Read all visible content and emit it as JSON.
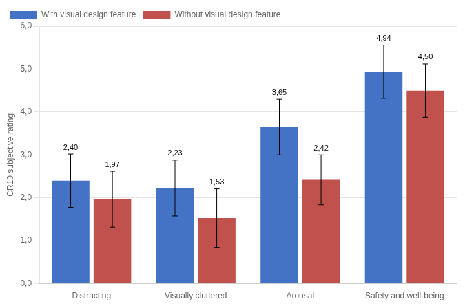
{
  "chart_data": {
    "type": "bar",
    "categories": [
      "Distracting",
      "Visually cluttered",
      "Arousal",
      "Safety and well-being"
    ],
    "series": [
      {
        "name": "With visual design feature",
        "color": "#4472C4",
        "values": [
          2.4,
          2.23,
          3.65,
          4.94
        ],
        "errors": [
          0.62,
          0.65,
          0.65,
          0.62
        ],
        "value_labels": [
          "2,40",
          "2,23",
          "3,65",
          "4,94"
        ]
      },
      {
        "name": "Without visual design feature",
        "color": "#C0514D",
        "values": [
          1.97,
          1.53,
          2.42,
          4.5
        ],
        "errors": [
          0.65,
          0.68,
          0.58,
          0.62
        ],
        "value_labels": [
          "1,97",
          "1,53",
          "2,42",
          "4,50"
        ]
      }
    ],
    "ylabel": "CR10 subjective rating",
    "ylim": [
      0,
      6.0
    ],
    "yticks": [
      {
        "value": 0.0,
        "label": "0,0"
      },
      {
        "value": 1.0,
        "label": "1,0"
      },
      {
        "value": 2.0,
        "label": "2,0"
      },
      {
        "value": 3.0,
        "label": "3,0"
      },
      {
        "value": 4.0,
        "label": "4,0"
      },
      {
        "value": 5.0,
        "label": "5,0"
      },
      {
        "value": 6.0,
        "label": "6,0"
      }
    ],
    "grid": "y",
    "legend": "upper left",
    "data_labels": true
  }
}
